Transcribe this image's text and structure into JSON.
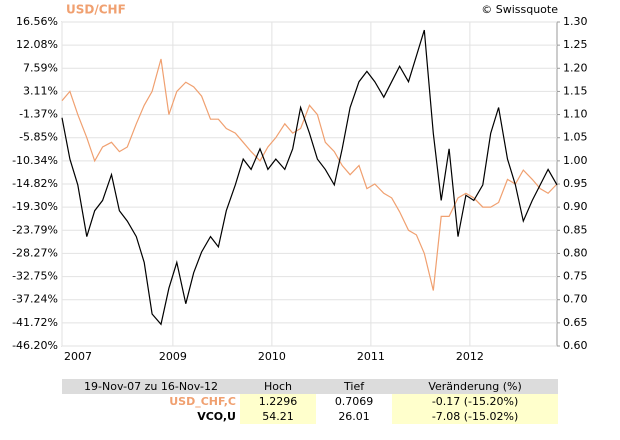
{
  "chart_data": {
    "type": "line",
    "title": "USD/CHF",
    "credit": "© Swissquote",
    "x": [
      2007.88,
      2007.96,
      2008.04,
      2008.13,
      2008.21,
      2008.29,
      2008.38,
      2008.46,
      2008.54,
      2008.63,
      2008.71,
      2008.79,
      2008.88,
      2008.96,
      2009.04,
      2009.13,
      2009.21,
      2009.29,
      2009.38,
      2009.46,
      2009.54,
      2009.63,
      2009.71,
      2009.79,
      2009.88,
      2009.96,
      2010.04,
      2010.13,
      2010.21,
      2010.29,
      2010.38,
      2010.46,
      2010.54,
      2010.63,
      2010.71,
      2010.79,
      2010.88,
      2010.96,
      2011.04,
      2011.13,
      2011.21,
      2011.29,
      2011.38,
      2011.46,
      2011.54,
      2011.63,
      2011.71,
      2011.79,
      2011.88,
      2011.96,
      2012.04,
      2012.13,
      2012.21,
      2012.29,
      2012.38,
      2012.46,
      2012.54,
      2012.63,
      2012.71,
      2012.79,
      2012.88
    ],
    "series": [
      {
        "color": "#f0a070",
        "axis": "y2",
        "values": [
          1.13,
          1.15,
          1.1,
          1.05,
          1.0,
          1.03,
          1.04,
          1.02,
          1.03,
          1.08,
          1.12,
          1.15,
          1.22,
          1.1,
          1.15,
          1.17,
          1.16,
          1.14,
          1.09,
          1.09,
          1.07,
          1.06,
          1.04,
          1.02,
          1.0,
          1.03,
          1.05,
          1.08,
          1.06,
          1.07,
          1.12,
          1.1,
          1.04,
          1.02,
          0.99,
          0.97,
          0.99,
          0.94,
          0.95,
          0.93,
          0.92,
          0.89,
          0.85,
          0.84,
          0.8,
          0.72,
          0.88,
          0.88,
          0.92,
          0.93,
          0.92,
          0.9,
          0.9,
          0.91,
          0.96,
          0.95,
          0.98,
          0.96,
          0.94,
          0.93,
          0.95
        ]
      },
      {
        "color": "#000000",
        "axis": "y",
        "values": [
          -2,
          -10,
          -15,
          -25,
          -20,
          -18,
          -13,
          -20,
          -22,
          -25,
          -30,
          -40,
          -42,
          -35,
          -30,
          -38,
          -32,
          -28,
          -25,
          -27,
          -20,
          -15,
          -10,
          -12,
          -8,
          -12,
          -10,
          -12,
          -8,
          0,
          -5,
          -10,
          -12,
          -15,
          -8,
          0,
          5,
          7,
          5,
          2,
          5,
          8,
          5,
          10,
          15,
          -5,
          -18,
          -8,
          -25,
          -17,
          -18,
          -15,
          -5,
          0,
          -10,
          -15,
          -22,
          -18,
          -15,
          -12,
          -15
        ]
      }
    ],
    "xlim": [
      2007.88,
      2012.88
    ],
    "xticks": [
      {
        "value": 2007.88,
        "label": "2007"
      },
      2009,
      2010,
      2011,
      2012
    ],
    "ylim": [
      -46.2,
      16.56
    ],
    "yticks": [
      {
        "value": 16.56,
        "label": "16.56%"
      },
      {
        "value": 12.08,
        "label": "12.08%"
      },
      {
        "value": 7.59,
        "label": "7.59%"
      },
      {
        "value": 3.11,
        "label": "3.11%"
      },
      {
        "value": -1.37,
        "label": "-1.37%"
      },
      {
        "value": -5.85,
        "label": "-5.85%"
      },
      {
        "value": -10.34,
        "label": "-10.34%"
      },
      {
        "value": -14.82,
        "label": "-14.82%"
      },
      {
        "value": -19.3,
        "label": "-19.30%"
      },
      {
        "value": -23.79,
        "label": "-23.79%"
      },
      {
        "value": -28.27,
        "label": "-28.27%"
      },
      {
        "value": -32.75,
        "label": "-32.75%"
      },
      {
        "value": -37.24,
        "label": "-37.24%"
      },
      {
        "value": -41.72,
        "label": "-41.72%"
      },
      {
        "value": -46.2,
        "label": "-46.20%"
      }
    ],
    "y2lim": [
      0.6,
      1.3
    ],
    "y2ticks": [
      {
        "value": 1.3,
        "label": "1.30"
      },
      1.25,
      {
        "value": 1.2,
        "label": "1.20"
      },
      1.15,
      {
        "value": 1.1,
        "label": "1.10"
      },
      1.05,
      {
        "value": 1.0,
        "label": "1.00"
      },
      0.95,
      {
        "value": 0.9,
        "label": "0.90"
      },
      0.85,
      {
        "value": 0.8,
        "label": "0.80"
      },
      0.75,
      {
        "value": 0.7,
        "label": "0.70"
      },
      0.65,
      {
        "value": 0.6,
        "label": "0.60"
      }
    ],
    "grid": true
  },
  "table": {
    "header": [
      "19-Nov-07 zu 16-Nov-12",
      "Hoch",
      "Tief",
      "Veränderung (%)"
    ],
    "rows": [
      [
        "USD_CHF,C",
        "1.2296",
        "0.7069",
        "-0.17 (-15.20%)"
      ],
      [
        "VCO,U",
        "54.21",
        "26.01",
        "-7.08 (-15.02%)"
      ]
    ]
  }
}
